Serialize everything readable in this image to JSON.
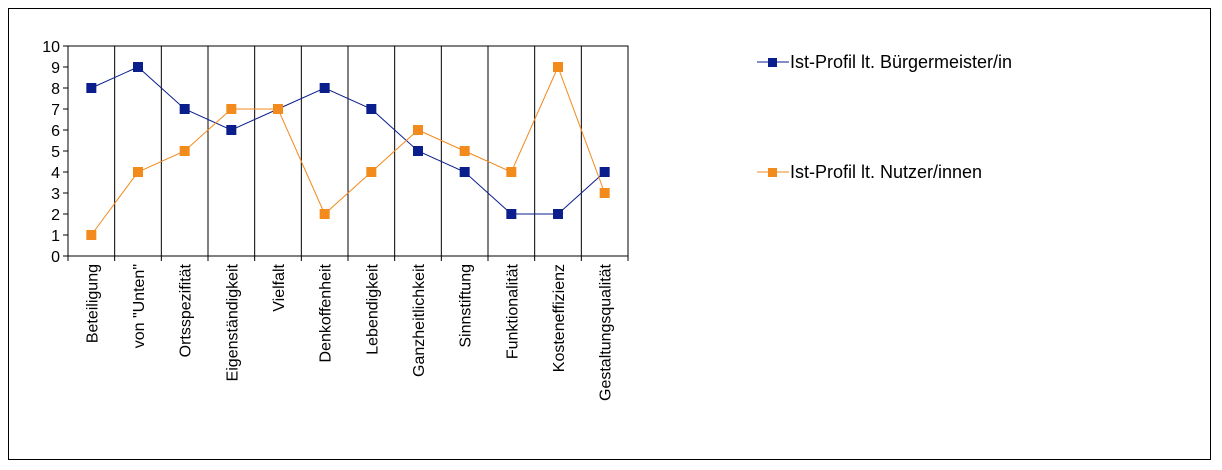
{
  "chart_data": {
    "type": "line",
    "categories": [
      "Beteiligung",
      "von \"Unten\"",
      "Ortsspezifität",
      "Eigenständigkeit",
      "Vielfalt",
      "Denkoffenheit",
      "Lebendigkeit",
      "Ganzheitlichkeit",
      "Sinnstiftung",
      "Funktionalität",
      "Kosteneffizienz",
      "Gestaltungsqualität"
    ],
    "series": [
      {
        "name": "Ist-Profil lt. Bürgermeister/in",
        "color": "#0a1e8c",
        "values": [
          8,
          9,
          7,
          6,
          7,
          8,
          7,
          5,
          4,
          2,
          2,
          4
        ]
      },
      {
        "name": "Ist-Profil lt. Nutzer/innen",
        "color": "#f28a1c",
        "values": [
          1,
          4,
          5,
          7,
          7,
          2,
          4,
          6,
          5,
          4,
          9,
          3
        ]
      }
    ],
    "ylim": [
      0,
      10
    ],
    "yticks": [
      "0",
      "1",
      "2",
      "3",
      "4",
      "5",
      "6",
      "7",
      "8",
      "9",
      "10"
    ],
    "grid": "vertical category separators",
    "legend": "right",
    "title": "",
    "xlabel": "",
    "ylabel": ""
  }
}
